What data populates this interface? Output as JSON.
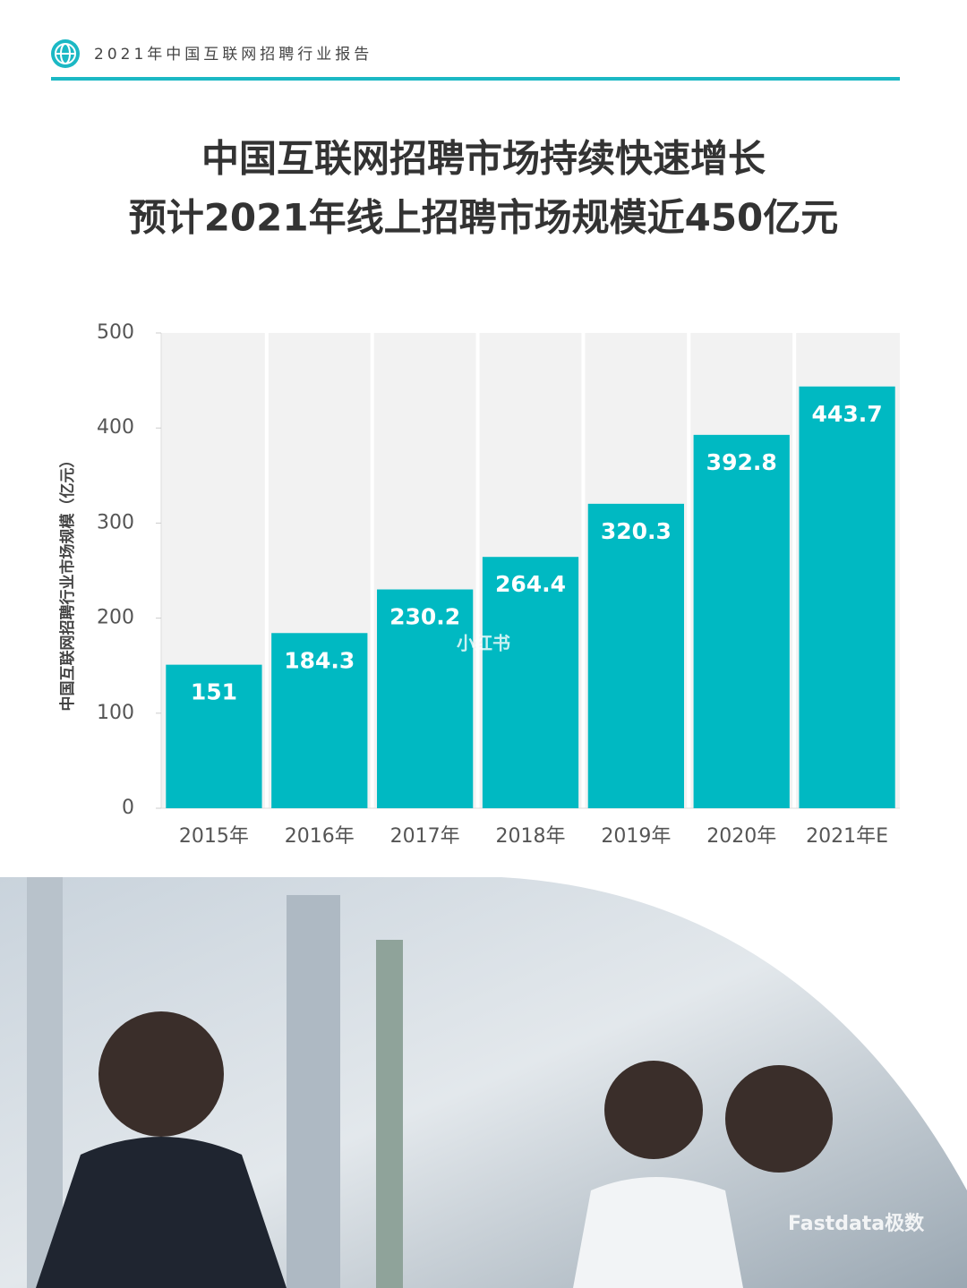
{
  "header": {
    "report_title": "2021年中国互联网招聘行业报告"
  },
  "title_lines": [
    "中国互联网招聘市场持续快速增长",
    "预计2021年线上招聘市场规模近450亿元"
  ],
  "chart_data": {
    "type": "bar",
    "y_label": "中国互联网招聘行业市场规模（亿元）",
    "categories": [
      "2015年",
      "2016年",
      "2017年",
      "2018年",
      "2019年",
      "2020年",
      "2021年E"
    ],
    "values": [
      151,
      184.3,
      230.2,
      264.4,
      320.3,
      392.8,
      443.7
    ],
    "color": "#00b9c2",
    "ylim": [
      0,
      500
    ],
    "yticks": [
      0,
      100,
      200,
      300,
      400,
      500
    ],
    "grid": true
  },
  "watermarks": [
    "小红书",
    "Fastdata极数"
  ]
}
